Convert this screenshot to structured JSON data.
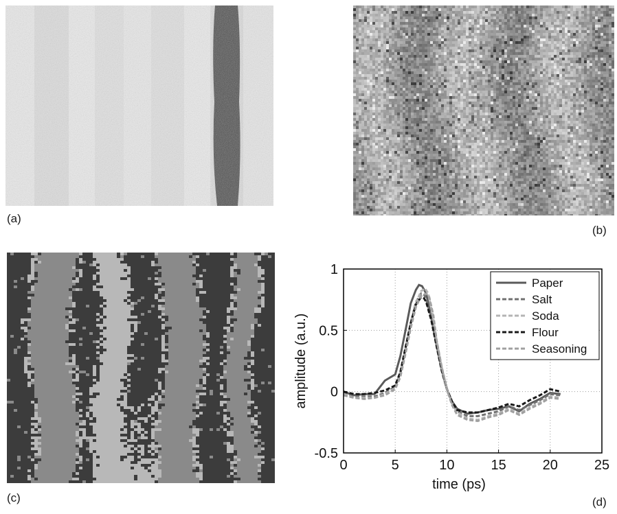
{
  "figure": {
    "labels": [
      "(a)",
      "(b)",
      "(c)",
      "(d)"
    ]
  },
  "palette": {
    "photo_bg": "#e4e4e4",
    "dark_sample": "#3a3a3a",
    "map_gray": "#9a9a9a",
    "class_dark": "#3c3c3c",
    "class_mid": "#8a8a8a",
    "class_light": "#b8b8b8"
  },
  "chart_data": {
    "type": "line",
    "xlabel": "time (ps)",
    "ylabel": "amplitude (a.u.)",
    "xlim": [
      0,
      25
    ],
    "ylim": [
      -0.5,
      1
    ],
    "xticks": [
      "0",
      "5",
      "10",
      "15",
      "20",
      "25"
    ],
    "yticks": [
      "1",
      "0.5",
      "0",
      "-0.5"
    ],
    "grid": true,
    "legend_position": "top-right",
    "series": [
      {
        "name": "Paper",
        "color": "#5a5a5a",
        "style": "solid",
        "x": [
          0,
          1,
          2,
          3,
          4,
          5,
          5.5,
          6,
          6.5,
          7,
          7.3,
          7.6,
          8,
          8.5,
          9,
          9.5,
          10,
          10.5,
          11,
          12,
          13,
          14,
          15,
          16,
          17,
          18,
          19,
          20,
          21
        ],
        "y": [
          0,
          -0.03,
          -0.02,
          -0.02,
          0.09,
          0.14,
          0.29,
          0.5,
          0.72,
          0.83,
          0.87,
          0.86,
          0.8,
          0.6,
          0.38,
          0.18,
          0.02,
          -0.08,
          -0.14,
          -0.18,
          -0.17,
          -0.15,
          -0.14,
          -0.12,
          -0.16,
          -0.1,
          -0.06,
          -0.01,
          -0.02
        ]
      },
      {
        "name": "Salt",
        "color": "#707070",
        "style": "dashed",
        "x": [
          0,
          1,
          2,
          3,
          4,
          5,
          5.5,
          6,
          6.5,
          7,
          7.5,
          7.8,
          8,
          8.5,
          9,
          9.5,
          10,
          10.5,
          11,
          12,
          13,
          14,
          15,
          16,
          17,
          18,
          19,
          20,
          21
        ],
        "y": [
          -0.01,
          -0.04,
          -0.04,
          -0.04,
          -0.01,
          0.04,
          0.15,
          0.35,
          0.56,
          0.73,
          0.8,
          0.79,
          0.75,
          0.6,
          0.38,
          0.18,
          0.02,
          -0.09,
          -0.16,
          -0.2,
          -0.2,
          -0.18,
          -0.16,
          -0.12,
          -0.15,
          -0.11,
          -0.07,
          -0.02,
          -0.03
        ]
      },
      {
        "name": "Soda",
        "color": "#b4b4b4",
        "style": "dashed",
        "x": [
          0,
          1,
          2,
          3,
          4,
          5,
          5.5,
          6,
          6.5,
          7,
          7.5,
          7.9,
          8.2,
          8.6,
          9,
          9.5,
          10,
          10.5,
          11,
          12,
          13,
          14,
          15,
          16,
          17,
          18,
          19,
          20,
          21
        ],
        "y": [
          -0.02,
          -0.05,
          -0.05,
          -0.05,
          -0.02,
          0.03,
          0.14,
          0.34,
          0.55,
          0.72,
          0.82,
          0.84,
          0.8,
          0.64,
          0.42,
          0.2,
          0.03,
          -0.1,
          -0.17,
          -0.22,
          -0.23,
          -0.2,
          -0.18,
          -0.14,
          -0.18,
          -0.13,
          -0.09,
          -0.04,
          -0.05
        ]
      },
      {
        "name": "Flour",
        "color": "#1a1a1a",
        "style": "dashed",
        "x": [
          0,
          1,
          2,
          3,
          4,
          5,
          5.5,
          6,
          6.5,
          7,
          7.5,
          7.8,
          8,
          8.5,
          9,
          9.5,
          10,
          10.5,
          11,
          12,
          13,
          14,
          15,
          16,
          17,
          18,
          19,
          20,
          21
        ],
        "y": [
          0,
          -0.02,
          -0.02,
          -0.01,
          0.01,
          0.05,
          0.16,
          0.36,
          0.56,
          0.71,
          0.77,
          0.76,
          0.73,
          0.58,
          0.37,
          0.17,
          0.02,
          -0.08,
          -0.15,
          -0.17,
          -0.17,
          -0.15,
          -0.13,
          -0.1,
          -0.12,
          -0.07,
          -0.03,
          0.02,
          0.0
        ]
      },
      {
        "name": "Seasoning",
        "color": "#a0a0a0",
        "style": "dashed",
        "x": [
          0,
          1,
          2,
          3,
          4,
          5,
          5.5,
          6,
          6.5,
          7,
          7.5,
          8,
          8.3,
          8.7,
          9,
          9.5,
          10,
          10.5,
          11,
          12,
          13,
          14,
          15,
          16,
          17,
          18,
          19,
          20,
          21
        ],
        "y": [
          -0.03,
          -0.05,
          -0.06,
          -0.05,
          -0.03,
          0.02,
          0.12,
          0.31,
          0.52,
          0.69,
          0.78,
          0.8,
          0.77,
          0.62,
          0.42,
          0.2,
          0.02,
          -0.11,
          -0.19,
          -0.23,
          -0.24,
          -0.21,
          -0.19,
          -0.15,
          -0.19,
          -0.14,
          -0.1,
          -0.05,
          -0.06
        ]
      }
    ]
  }
}
